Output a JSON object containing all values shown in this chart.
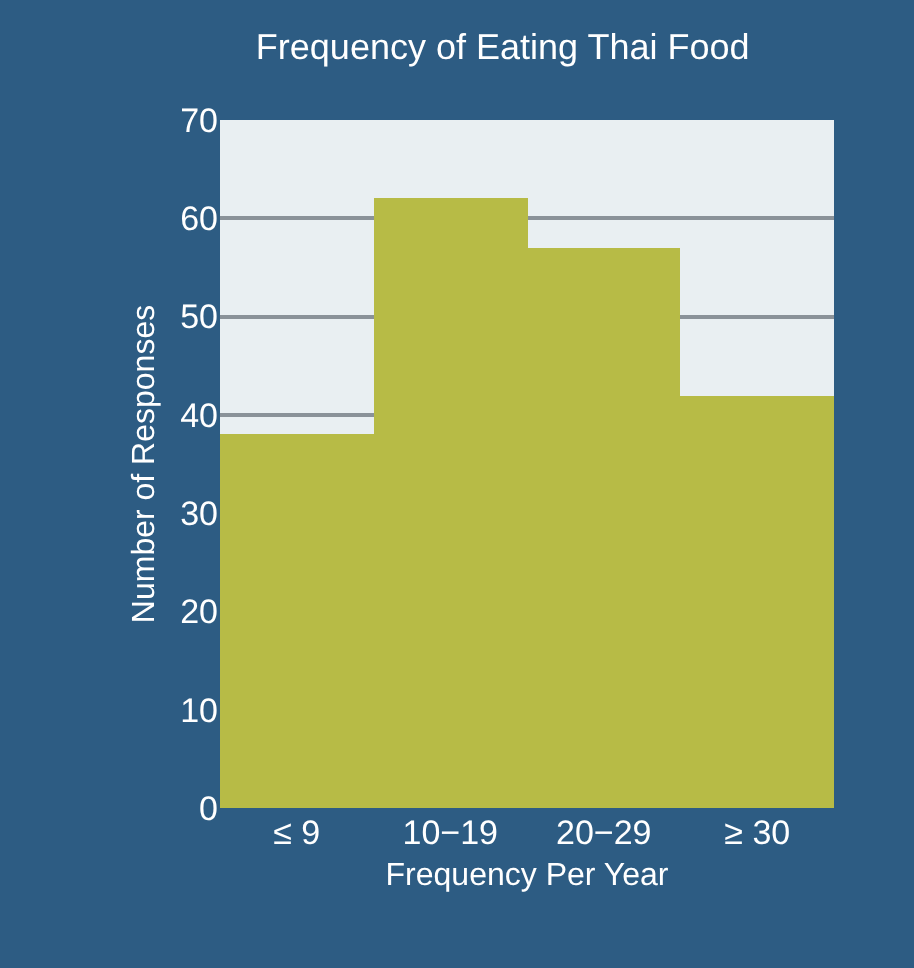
{
  "chart_data": {
    "type": "bar",
    "title": "Frequency of Eating Thai Food",
    "xlabel": "Frequency Per Year",
    "ylabel": "Number of Responses",
    "categories": [
      "≤ 9",
      "10−19",
      "20−29",
      "≥ 30"
    ],
    "values": [
      38,
      62,
      57,
      42
    ],
    "color": "#b7bb46",
    "ylim": [
      0,
      70
    ],
    "yticks": [
      0,
      10,
      20,
      30,
      40,
      50,
      60,
      70
    ],
    "grid": "y"
  }
}
